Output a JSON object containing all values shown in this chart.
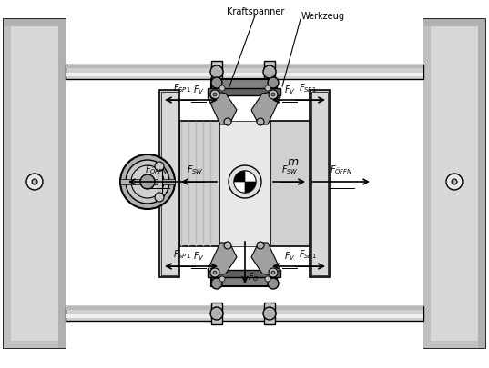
{
  "bg_color": "#ffffff",
  "figure_size": [
    5.37,
    4.06
  ],
  "dpi": 100,
  "frame_color": "#d0d0d0",
  "dark_gray": "#808080",
  "mid_gray": "#a0a0a0",
  "light_gray": "#c8c8c8",
  "very_light_gray": "#e0e0e0",
  "arrow_color": "#000000",
  "line_color": "#000000",
  "text_color": "#000000",
  "labels": {
    "kraftspanner": "Kraftspanner",
    "werkzeug": "Werkzeug",
    "m": "m"
  }
}
